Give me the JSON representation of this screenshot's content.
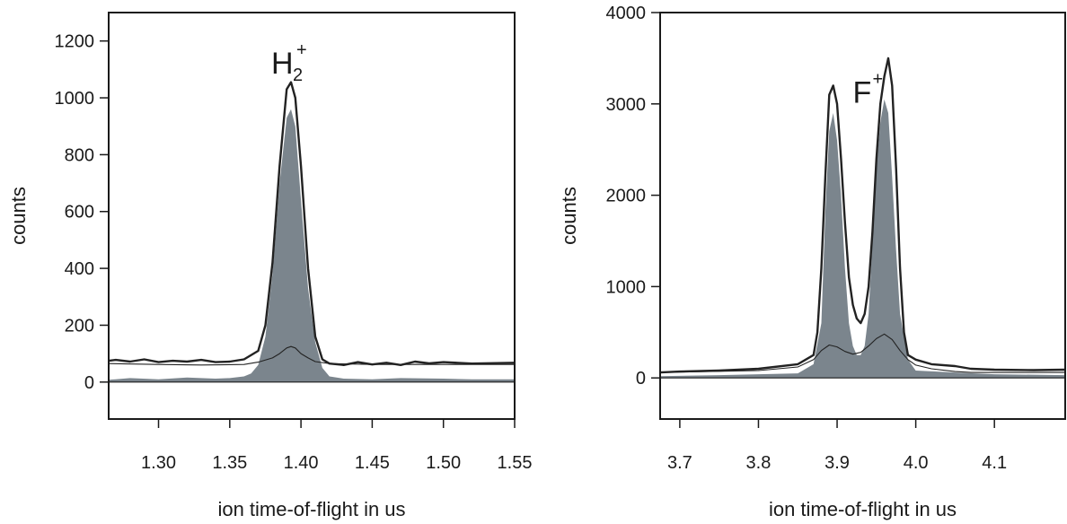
{
  "colors": {
    "fill": "#7b858d",
    "line": "#222222",
    "axis": "#1a1a1a"
  },
  "chart_data": [
    {
      "type": "area",
      "xlabel": "ion time-of-flight in us",
      "ylabel": "counts",
      "xlim": [
        1.265,
        1.55
      ],
      "ylim": [
        -130,
        1300
      ],
      "xticks": [
        1.3,
        1.35,
        1.4,
        1.45,
        1.5,
        1.55
      ],
      "xtick_labels": [
        "1.30",
        "1.35",
        "1.40",
        "1.45",
        "1.50",
        "1.55"
      ],
      "yticks": [
        0,
        200,
        400,
        600,
        800,
        1000,
        1200
      ],
      "ytick_labels": [
        "0",
        "200",
        "400",
        "600",
        "800",
        "1000",
        "1200"
      ],
      "annotation": {
        "base": "H",
        "sub": "2",
        "sup": "+",
        "x": 1.393,
        "y": 1130
      },
      "series": [
        {
          "style": "filled",
          "x": [
            1.265,
            1.28,
            1.3,
            1.32,
            1.34,
            1.35,
            1.36,
            1.365,
            1.37,
            1.375,
            1.38,
            1.385,
            1.39,
            1.393,
            1.396,
            1.4,
            1.405,
            1.41,
            1.415,
            1.42,
            1.43,
            1.45,
            1.47,
            1.5,
            1.52,
            1.55
          ],
          "y": [
            8,
            14,
            10,
            16,
            12,
            14,
            20,
            30,
            60,
            160,
            380,
            700,
            930,
            960,
            900,
            640,
            330,
            140,
            50,
            20,
            12,
            10,
            14,
            12,
            10,
            10
          ]
        },
        {
          "style": "thick",
          "x": [
            1.265,
            1.27,
            1.28,
            1.29,
            1.3,
            1.31,
            1.32,
            1.33,
            1.34,
            1.35,
            1.36,
            1.37,
            1.375,
            1.38,
            1.385,
            1.39,
            1.393,
            1.396,
            1.4,
            1.405,
            1.41,
            1.415,
            1.42,
            1.43,
            1.44,
            1.45,
            1.46,
            1.47,
            1.48,
            1.49,
            1.5,
            1.52,
            1.55
          ],
          "y": [
            75,
            78,
            72,
            80,
            70,
            75,
            72,
            78,
            70,
            72,
            80,
            110,
            200,
            420,
            760,
            1030,
            1055,
            1000,
            760,
            400,
            160,
            80,
            65,
            60,
            70,
            62,
            68,
            60,
            72,
            66,
            70,
            65,
            68
          ]
        },
        {
          "style": "thin",
          "x": [
            1.265,
            1.3,
            1.33,
            1.36,
            1.37,
            1.38,
            1.385,
            1.39,
            1.393,
            1.396,
            1.4,
            1.405,
            1.41,
            1.42,
            1.45,
            1.5,
            1.55
          ],
          "y": [
            65,
            62,
            60,
            62,
            70,
            85,
            100,
            120,
            125,
            120,
            100,
            85,
            72,
            65,
            62,
            62,
            62
          ]
        }
      ]
    },
    {
      "type": "area",
      "xlabel": "ion time-of-flight in us",
      "ylabel": "counts",
      "xlim": [
        3.675,
        4.19
      ],
      "ylim": [
        -450,
        4000
      ],
      "xticks": [
        3.7,
        3.8,
        3.9,
        4.0,
        4.1
      ],
      "xtick_labels": [
        "3.7",
        "3.8",
        "3.9",
        "4.0",
        "4.1"
      ],
      "yticks": [
        0,
        1000,
        2000,
        3000,
        4000
      ],
      "ytick_labels": [
        "0",
        "1000",
        "2000",
        "3000",
        "4000"
      ],
      "annotation": {
        "base": "F",
        "sub": "",
        "sup": "+",
        "x": 3.945,
        "y": 3150
      },
      "series": [
        {
          "style": "filled",
          "x": [
            3.675,
            3.75,
            3.85,
            3.87,
            3.88,
            3.885,
            3.89,
            3.895,
            3.9,
            3.905,
            3.91,
            3.915,
            3.92,
            3.925,
            3.93,
            3.935,
            3.94,
            3.945,
            3.95,
            3.955,
            3.96,
            3.965,
            3.97,
            3.975,
            3.98,
            3.99,
            4.0,
            4.05,
            4.1,
            4.19
          ],
          "y": [
            20,
            30,
            50,
            150,
            600,
            1800,
            2700,
            2900,
            2600,
            2000,
            1200,
            600,
            350,
            250,
            250,
            350,
            700,
            1500,
            2300,
            2800,
            3050,
            2900,
            2200,
            1400,
            700,
            200,
            80,
            60,
            40,
            30
          ]
        },
        {
          "style": "thick",
          "x": [
            3.675,
            3.7,
            3.75,
            3.8,
            3.85,
            3.87,
            3.875,
            3.88,
            3.885,
            3.89,
            3.895,
            3.9,
            3.905,
            3.91,
            3.915,
            3.92,
            3.925,
            3.93,
            3.935,
            3.94,
            3.945,
            3.95,
            3.955,
            3.96,
            3.965,
            3.97,
            3.975,
            3.98,
            3.985,
            3.99,
            4.0,
            4.02,
            4.05,
            4.07,
            4.1,
            4.15,
            4.19
          ],
          "y": [
            60,
            70,
            80,
            100,
            150,
            250,
            500,
            1200,
            2200,
            3100,
            3200,
            3000,
            2400,
            1700,
            1100,
            800,
            650,
            600,
            700,
            1000,
            1600,
            2400,
            3000,
            3300,
            3500,
            3200,
            2300,
            1200,
            500,
            250,
            200,
            150,
            130,
            100,
            90,
            85,
            90
          ]
        },
        {
          "style": "thin",
          "x": [
            3.675,
            3.8,
            3.85,
            3.87,
            3.88,
            3.89,
            3.9,
            3.91,
            3.92,
            3.93,
            3.94,
            3.95,
            3.96,
            3.97,
            3.98,
            3.99,
            4.0,
            4.02,
            4.05,
            4.07,
            4.1,
            4.19
          ],
          "y": [
            60,
            80,
            120,
            200,
            300,
            360,
            340,
            290,
            260,
            280,
            350,
            430,
            480,
            420,
            300,
            200,
            140,
            100,
            70,
            60,
            60,
            60
          ]
        }
      ]
    }
  ]
}
